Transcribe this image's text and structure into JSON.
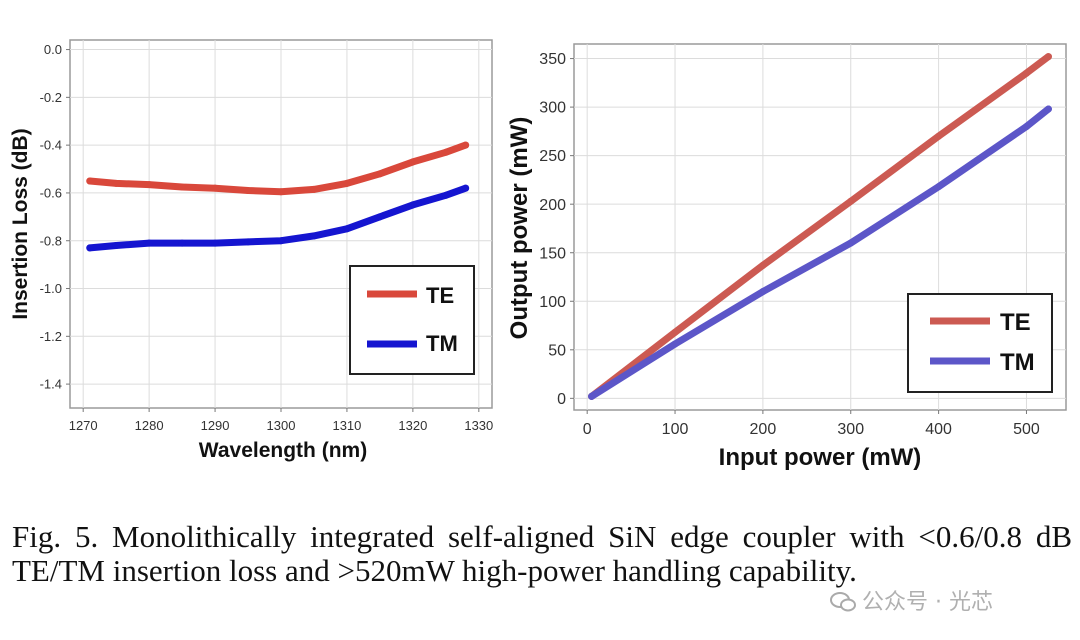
{
  "chart_data": [
    {
      "type": "line",
      "xlabel": "Wavelength (nm)",
      "ylabel": "Insertion Loss (dB)",
      "xlim": [
        1268,
        1332
      ],
      "ylim": [
        -1.5,
        0.04
      ],
      "xticks": [
        1270,
        1280,
        1290,
        1300,
        1310,
        1320,
        1330
      ],
      "yticks": [
        0.0,
        -0.2,
        -0.4,
        -0.6,
        -0.8,
        -1.0,
        -1.2,
        -1.4
      ],
      "xtick_labels": [
        "1270",
        "1280",
        "1290",
        "1300",
        "1310",
        "1320",
        "1330"
      ],
      "ytick_labels": [
        "0.0",
        "-0.2",
        "-0.4",
        "-0.6",
        "-0.8",
        "-1.0",
        "-1.2",
        "-1.4"
      ],
      "grid": true,
      "legend": "bottom-right",
      "series": [
        {
          "name": "TE",
          "color": "#d9483b",
          "x": [
            1271,
            1275,
            1280,
            1285,
            1290,
            1295,
            1300,
            1305,
            1310,
            1315,
            1320,
            1325,
            1328
          ],
          "y": [
            -0.55,
            -0.56,
            -0.565,
            -0.575,
            -0.58,
            -0.59,
            -0.595,
            -0.585,
            -0.56,
            -0.52,
            -0.47,
            -0.43,
            -0.4
          ]
        },
        {
          "name": "TM",
          "color": "#1515d0",
          "x": [
            1271,
            1275,
            1280,
            1285,
            1290,
            1295,
            1300,
            1305,
            1310,
            1315,
            1320,
            1325,
            1328
          ],
          "y": [
            -0.83,
            -0.82,
            -0.81,
            -0.81,
            -0.81,
            -0.805,
            -0.8,
            -0.78,
            -0.75,
            -0.7,
            -0.65,
            -0.61,
            -0.58
          ]
        }
      ]
    },
    {
      "type": "line",
      "xlabel": "Input power (mW)",
      "ylabel": "Output power (mW)",
      "xlim": [
        -15,
        545
      ],
      "ylim": [
        -12,
        365
      ],
      "xticks": [
        0,
        100,
        200,
        300,
        400,
        500
      ],
      "yticks": [
        0,
        50,
        100,
        150,
        200,
        250,
        300,
        350
      ],
      "xtick_labels": [
        "0",
        "100",
        "200",
        "300",
        "400",
        "500"
      ],
      "ytick_labels": [
        "0",
        "50",
        "100",
        "150",
        "200",
        "250",
        "300",
        "350"
      ],
      "grid": true,
      "legend": "bottom-right",
      "series": [
        {
          "name": "TE",
          "color": "#cc5a52",
          "x": [
            5,
            100,
            200,
            300,
            400,
            500,
            525
          ],
          "y": [
            2,
            68,
            137,
            203,
            270,
            335,
            352
          ]
        },
        {
          "name": "TM",
          "color": "#5c56c8",
          "x": [
            5,
            100,
            200,
            300,
            400,
            500,
            525
          ],
          "y": [
            2,
            56,
            110,
            160,
            218,
            280,
            298
          ]
        }
      ]
    }
  ],
  "caption": "Fig. 5. Monolithically integrated self-aligned SiN edge coupler with <0.6/0.8 dB TE/TM insertion loss and >520mW high-power handling capability.",
  "watermark": "公众号 · 光芯"
}
